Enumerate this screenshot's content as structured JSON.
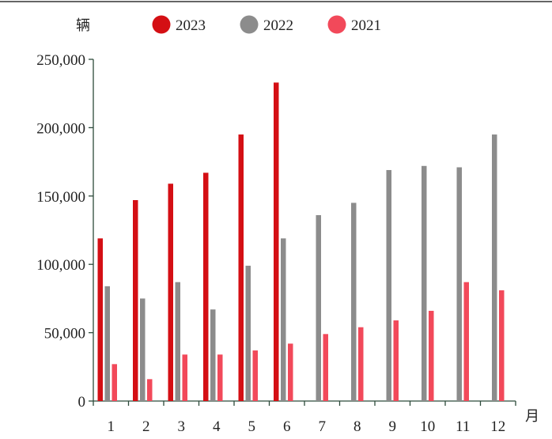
{
  "chart_data": {
    "type": "bar",
    "unit_label": "辆",
    "xunit_label": "月",
    "categories": [
      "1",
      "2",
      "3",
      "4",
      "5",
      "6",
      "7",
      "8",
      "9",
      "10",
      "11",
      "12"
    ],
    "series": [
      {
        "name": "2023",
        "color": "#d40f14",
        "values": [
          119000,
          147000,
          159000,
          167000,
          195000,
          233000,
          null,
          null,
          null,
          null,
          null,
          null
        ]
      },
      {
        "name": "2022",
        "color": "#8c8c8c",
        "values": [
          84000,
          75000,
          87000,
          67000,
          99000,
          119000,
          136000,
          145000,
          169000,
          172000,
          171000,
          195000
        ]
      },
      {
        "name": "2021",
        "color": "#f2495a",
        "values": [
          27000,
          16000,
          34000,
          34000,
          37000,
          42000,
          49000,
          54000,
          59000,
          66000,
          87000,
          81000
        ]
      }
    ],
    "yticks": [
      "0",
      "50,000",
      "100,000",
      "150,000",
      "200,000",
      "250,000"
    ],
    "ylim": [
      0,
      250000
    ],
    "legend_position": "top",
    "grid": false
  }
}
